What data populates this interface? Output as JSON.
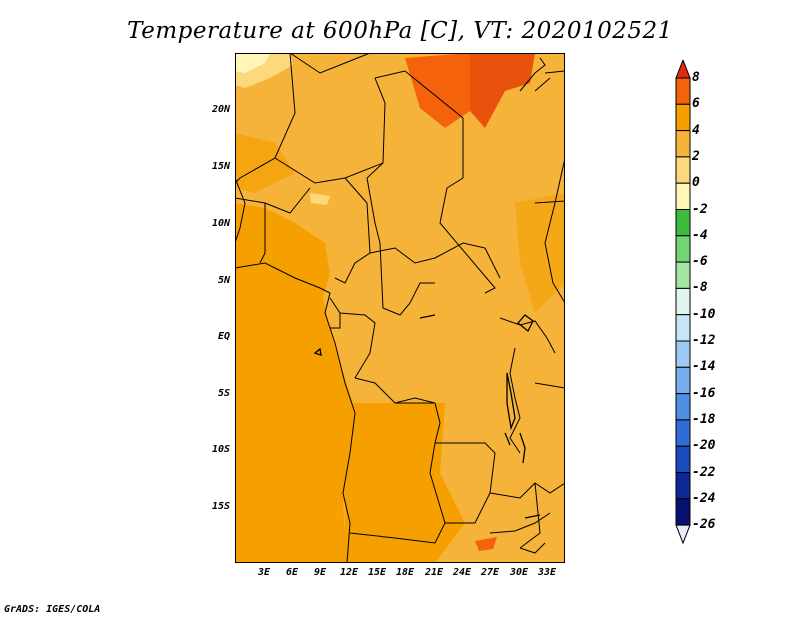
{
  "title": "Temperature at 600hPa [C], VT: 2020102521",
  "footer": "GrADS: IGES/COLA",
  "map": {
    "lat_ticks": [
      "20N",
      "15N",
      "10N",
      "5N",
      "EQ",
      "5S",
      "10S",
      "15S"
    ],
    "lon_ticks": [
      "3E",
      "6E",
      "9E",
      "12E",
      "15E",
      "18E",
      "21E",
      "24E",
      "27E",
      "30E",
      "33E"
    ],
    "background_color": "#f6b33a"
  },
  "colorbar": {
    "labels": [
      "8",
      "6",
      "4",
      "2",
      "0",
      "-2",
      "-4",
      "-6",
      "-8",
      "-10",
      "-12",
      "-14",
      "-16",
      "-18",
      "-20",
      "-22",
      "-24",
      "-26"
    ],
    "colors": [
      "#e42a10",
      "#f4620c",
      "#f5a000",
      "#f6b33a",
      "#fdd97e",
      "#fff6b8",
      "#3cbc3c",
      "#72d472",
      "#a2e6a2",
      "#e0f5f0",
      "#c6e6f6",
      "#9ccaf2",
      "#78aeec",
      "#4e8ee4",
      "#2e6cd6",
      "#1a4cc0",
      "#0c2898",
      "#0a1070"
    ]
  }
}
